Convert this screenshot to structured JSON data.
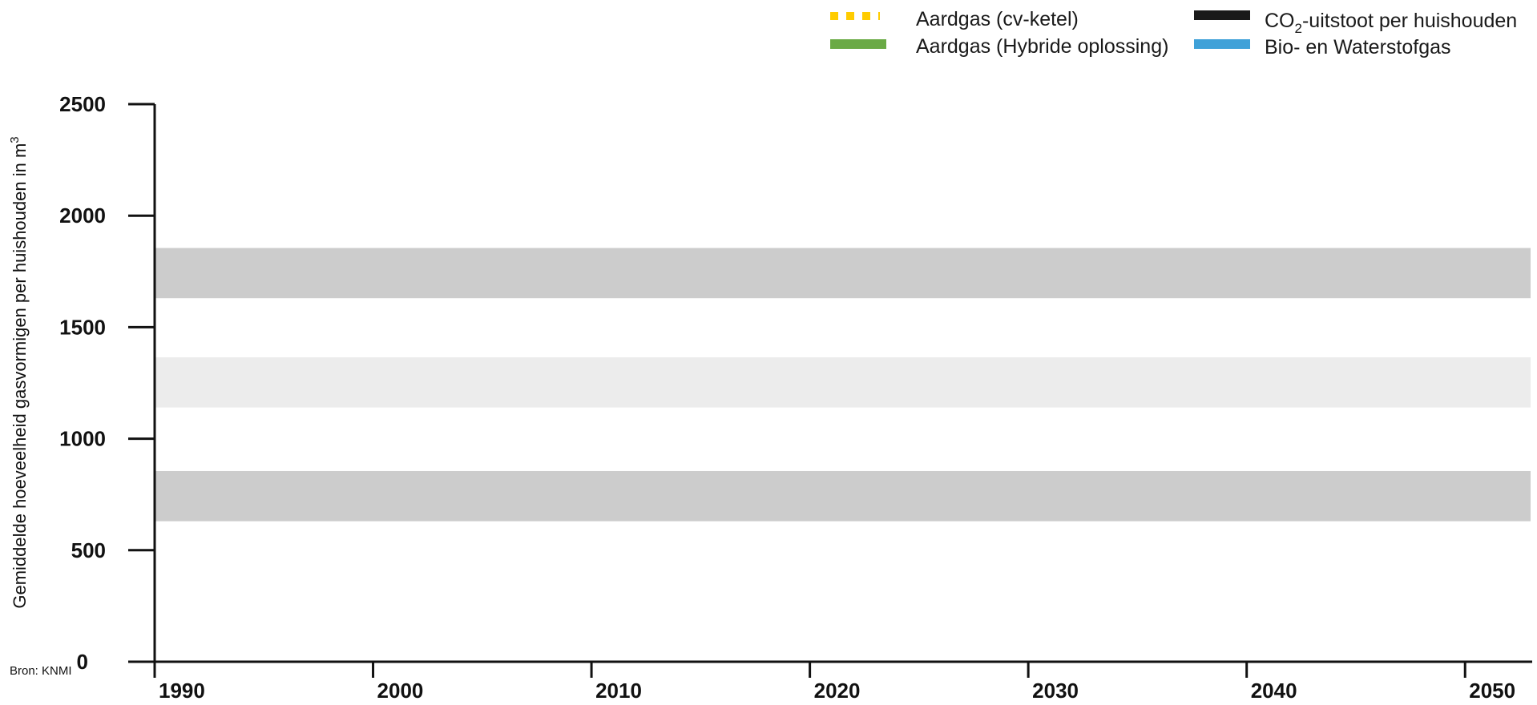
{
  "chart_data": {
    "type": "line",
    "title": "",
    "xlabel": "",
    "ylabel": "Gemiddelde hoeveelheid gasvormigen per huishouden in m",
    "ylabel_sup": "3",
    "xlim": [
      1990,
      2053
    ],
    "ylim": [
      0,
      2500
    ],
    "x_ticks": [
      "1990",
      "2000",
      "2010",
      "2020",
      "2030",
      "2040",
      "2050"
    ],
    "x_tick_values": [
      1990,
      2000,
      2010,
      2020,
      2030,
      2040,
      2050
    ],
    "y_ticks": [
      "0",
      "500",
      "1000",
      "1500",
      "2000",
      "2500"
    ],
    "y_tick_values": [
      0,
      500,
      1000,
      1500,
      2000,
      2500
    ],
    "bands": [
      {
        "y0": 630,
        "y1": 855,
        "color": "#cccccc"
      },
      {
        "y0": 1140,
        "y1": 1365,
        "color": "#ececec"
      },
      {
        "y0": 1630,
        "y1": 1855,
        "color": "#cccccc"
      }
    ],
    "legend": [
      {
        "label": "Aardgas (cv-ketel)",
        "color": "#ffcc00",
        "style": "dotted"
      },
      {
        "label": "Aardgas (Hybride oplossing)",
        "color": "#6aaa45",
        "style": "solid"
      },
      {
        "label_pre": "CO",
        "label_sub": "2",
        "label_post": "-uitstoot per huishouden",
        "color": "#1a1a1a",
        "style": "solid"
      },
      {
        "label": "Bio- en Waterstofgas",
        "color": "#3fa1d8",
        "style": "solid"
      }
    ],
    "series": [],
    "legend_position": "top-right",
    "grid": false
  },
  "source_text": "Bron: KNMI"
}
